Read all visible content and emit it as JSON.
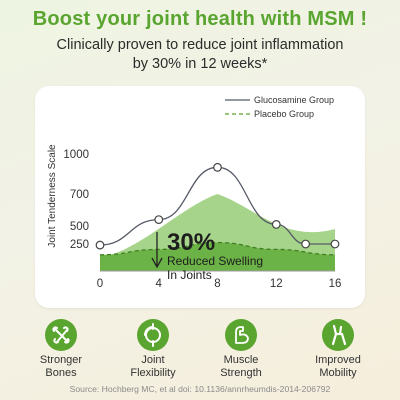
{
  "header": {
    "title": "Boost your joint health with MSM !",
    "subtitle_line1": "Clinically proven to reduce joint inflammation",
    "subtitle_line2": "by 30% in 12 weeks*"
  },
  "colors": {
    "brand_green": "#5aa52f",
    "light_green": "#a7d48b",
    "dark_green": "#6cb347",
    "line_color": "#555a66"
  },
  "chart_data": {
    "type": "line",
    "ylabel": "Joint Tenderness Scale",
    "xlabel": "",
    "x": [
      0,
      4,
      8,
      12,
      16
    ],
    "x_ticks": [
      "0",
      "4",
      "8",
      "12",
      "16"
    ],
    "y_ticks": [
      "250",
      "500",
      "700",
      "1000"
    ],
    "series": [
      {
        "name": "Glucosamine Group",
        "style": "solid line with open circle markers",
        "x": [
          0,
          4,
          8,
          12,
          14,
          16
        ],
        "values": [
          240,
          540,
          900,
          510,
          250,
          250
        ]
      },
      {
        "name": "Placebo Group",
        "style": "dashed line, filled area",
        "x": [
          0,
          4,
          8,
          12,
          16
        ],
        "values": [
          150,
          200,
          270,
          200,
          150
        ]
      }
    ],
    "annotation": {
      "value": "30%",
      "text_line1": "Reduced Swelling",
      "text_line2": "In Joints"
    },
    "legend_position": "top-right",
    "grid": false
  },
  "benefits": [
    {
      "icon": "bones-icon",
      "line1": "Stronger",
      "line2": "Bones"
    },
    {
      "icon": "joint-flexibility-icon",
      "line1": "Joint",
      "line2": "Flexibility"
    },
    {
      "icon": "muscle-strength-icon",
      "line1": "Muscle",
      "line2": "Strength"
    },
    {
      "icon": "mobility-icon",
      "line1": "Improved",
      "line2": "Mobility"
    }
  ],
  "source": "Source: Hochberg MC, et al doi: 10.1136/annrheumdis-2014-206792"
}
